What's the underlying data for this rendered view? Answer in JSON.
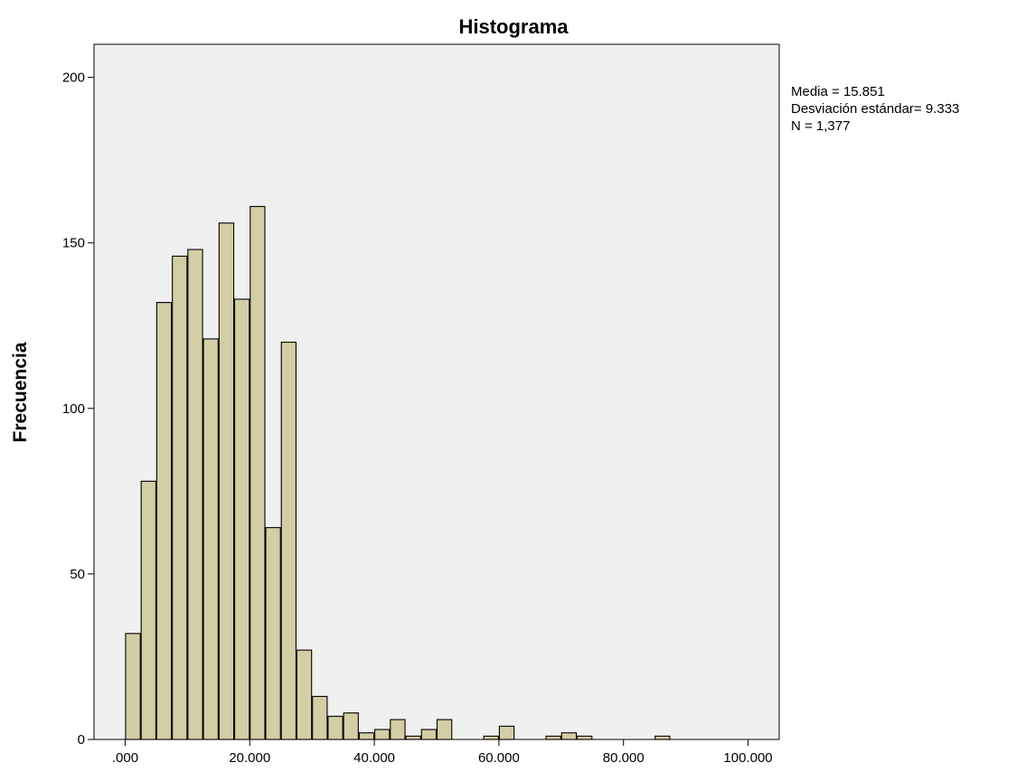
{
  "chart_data": {
    "type": "bar",
    "title": "Histograma",
    "xlabel": "",
    "ylabel": "Frecuencia",
    "bin_width": 2.5,
    "bin_start": 0,
    "xlim": [
      -5,
      105
    ],
    "ylim": [
      0,
      210
    ],
    "x_ticks": [
      0,
      20,
      40,
      60,
      80,
      100
    ],
    "x_tick_labels": [
      ".000",
      "20.000",
      "40.000",
      "60.000",
      "80.000",
      "100.000"
    ],
    "y_ticks": [
      0,
      50,
      100,
      150,
      200
    ],
    "y_tick_labels": [
      "0",
      "50",
      "100",
      "150",
      "200"
    ],
    "values": [
      32,
      78,
      132,
      146,
      148,
      121,
      156,
      133,
      161,
      64,
      120,
      27,
      13,
      7,
      8,
      2,
      3,
      6,
      1,
      3,
      6,
      0,
      0,
      1,
      4,
      0,
      0,
      1,
      2,
      1,
      0,
      0,
      0,
      0,
      1
    ],
    "stats": [
      "Media = 15.851",
      "Desviación estándar= 9.333",
      "N = 1,377"
    ],
    "colors": {
      "bar_fill": "#d3cea3",
      "bar_stroke": "#000000",
      "plot_bg": "#f0f0f0",
      "axis": "#000000"
    }
  }
}
